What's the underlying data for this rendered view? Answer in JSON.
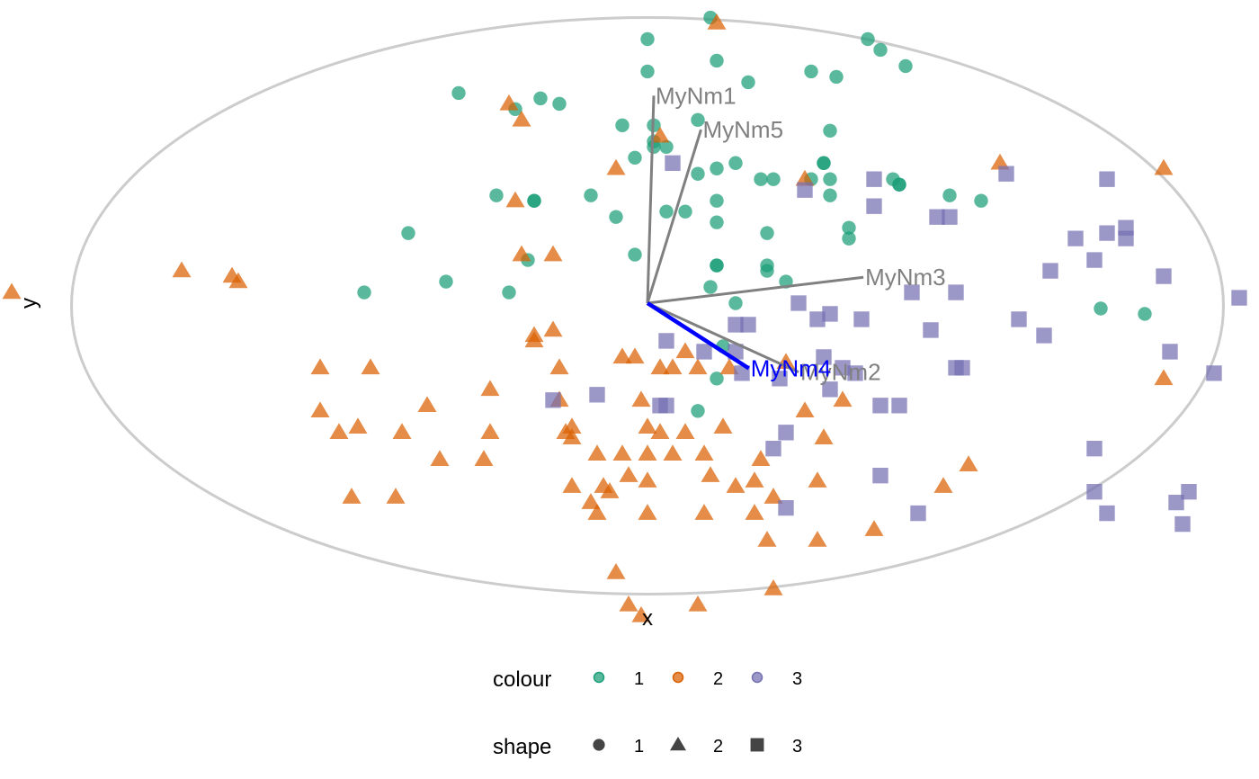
{
  "chart_data": {
    "type": "scatter",
    "title": "",
    "xlabel": "x",
    "ylabel": "y",
    "grid": false,
    "xlim": [
      -1.03,
      1.03
    ],
    "ylim": [
      -0.565,
      0.545
    ],
    "colors": {
      "1": "#1b9e77",
      "2": "#d95f02",
      "3": "#7570b3",
      "ellipse": "#cccccc",
      "arrow": "#808080",
      "highlight": "#0000ff"
    },
    "series": [
      {
        "name": "1",
        "shape": "circle",
        "points": [
          [
            0.1,
            0.53
          ],
          [
            0.0,
            0.49
          ],
          [
            0.35,
            0.49
          ],
          [
            0.37,
            0.47
          ],
          [
            0.41,
            0.44
          ],
          [
            0.0,
            0.43
          ],
          [
            0.16,
            0.41
          ],
          [
            0.3,
            0.42
          ],
          [
            -0.3,
            0.39
          ],
          [
            -0.17,
            0.38
          ],
          [
            -0.14,
            0.37
          ],
          [
            -0.21,
            0.36
          ],
          [
            0.08,
            0.34
          ],
          [
            -0.04,
            0.33
          ],
          [
            0.01,
            0.33
          ],
          [
            0.29,
            0.32
          ],
          [
            0.01,
            0.3
          ],
          [
            0.01,
            0.29
          ],
          [
            0.03,
            0.29
          ],
          [
            -0.02,
            0.27
          ],
          [
            0.14,
            0.26
          ],
          [
            0.11,
            0.25
          ],
          [
            0.08,
            0.24
          ],
          [
            0.28,
            0.26
          ],
          [
            0.28,
            0.26
          ],
          [
            0.18,
            0.23
          ],
          [
            0.2,
            0.23
          ],
          [
            0.29,
            0.23
          ],
          [
            0.26,
            0.23
          ],
          [
            0.39,
            0.23
          ],
          [
            0.4,
            0.22
          ],
          [
            -0.24,
            0.2
          ],
          [
            -0.18,
            0.19
          ],
          [
            -0.09,
            0.2
          ],
          [
            -0.18,
            0.19
          ],
          [
            0.4,
            0.22
          ],
          [
            0.29,
            0.2
          ],
          [
            0.48,
            0.2
          ],
          [
            0.53,
            0.19
          ],
          [
            0.03,
            0.17
          ],
          [
            -0.05,
            0.16
          ],
          [
            0.06,
            0.17
          ],
          [
            0.11,
            0.15
          ],
          [
            0.32,
            0.14
          ],
          [
            -0.38,
            0.13
          ],
          [
            0.19,
            0.13
          ],
          [
            0.32,
            0.12
          ],
          [
            -0.02,
            0.09
          ],
          [
            -0.19,
            0.08
          ],
          [
            0.11,
            0.07
          ],
          [
            0.11,
            0.07
          ],
          [
            0.19,
            0.07
          ],
          [
            0.19,
            0.06
          ],
          [
            -0.32,
            0.04
          ],
          [
            0.22,
            0.04
          ],
          [
            -0.45,
            0.02
          ],
          [
            -0.22,
            0.02
          ],
          [
            0.1,
            0.03
          ],
          [
            0.14,
            0.0
          ],
          [
            0.72,
            -0.01
          ],
          [
            0.12,
            -0.08
          ],
          [
            0.11,
            -0.14
          ],
          [
            0.08,
            -0.2
          ],
          [
            0.26,
            0.43
          ],
          [
            0.79,
            -0.02
          ],
          [
            0.11,
            0.19
          ],
          [
            0.11,
            0.45
          ]
        ]
      },
      {
        "name": "2",
        "shape": "triangle",
        "points": [
          [
            0.11,
            0.52
          ],
          [
            -0.22,
            0.37
          ],
          [
            -0.2,
            0.34
          ],
          [
            0.02,
            0.31
          ],
          [
            0.25,
            0.23
          ],
          [
            -0.05,
            0.25
          ],
          [
            0.56,
            0.26
          ],
          [
            0.82,
            0.25
          ],
          [
            -0.21,
            0.19
          ],
          [
            -0.66,
            0.05
          ],
          [
            -0.2,
            0.09
          ],
          [
            -0.65,
            0.04
          ],
          [
            -0.15,
            0.09
          ],
          [
            -0.74,
            0.06
          ],
          [
            -1.01,
            0.02
          ],
          [
            0.06,
            -0.09
          ],
          [
            -0.15,
            -0.05
          ],
          [
            -0.18,
            -0.07
          ],
          [
            -0.18,
            -0.06
          ],
          [
            -0.14,
            -0.12
          ],
          [
            -0.04,
            -0.1
          ],
          [
            -0.02,
            -0.1
          ],
          [
            0.02,
            -0.12
          ],
          [
            0.04,
            -0.12
          ],
          [
            0.13,
            -0.12
          ],
          [
            -0.52,
            -0.12
          ],
          [
            -0.44,
            -0.12
          ],
          [
            -0.25,
            -0.16
          ],
          [
            -0.14,
            -0.18
          ],
          [
            -0.01,
            -0.18
          ],
          [
            0.31,
            -0.18
          ],
          [
            -0.35,
            -0.19
          ],
          [
            -0.52,
            -0.2
          ],
          [
            -0.12,
            -0.23
          ],
          [
            0.0,
            -0.23
          ],
          [
            0.06,
            -0.24
          ],
          [
            0.25,
            -0.2
          ],
          [
            0.12,
            -0.23
          ],
          [
            -0.25,
            -0.24
          ],
          [
            -0.49,
            -0.24
          ],
          [
            -0.46,
            -0.23
          ],
          [
            -0.39,
            -0.24
          ],
          [
            -0.12,
            -0.25
          ],
          [
            0.02,
            -0.24
          ],
          [
            0.09,
            -0.28
          ],
          [
            -0.33,
            -0.29
          ],
          [
            -0.26,
            -0.29
          ],
          [
            -0.08,
            -0.28
          ],
          [
            -0.04,
            -0.28
          ],
          [
            0.0,
            -0.28
          ],
          [
            0.04,
            -0.28
          ],
          [
            0.18,
            -0.29
          ],
          [
            0.51,
            -0.3
          ],
          [
            0.1,
            -0.32
          ],
          [
            -0.12,
            -0.34
          ],
          [
            -0.07,
            -0.34
          ],
          [
            0.14,
            -0.34
          ],
          [
            0.17,
            -0.33
          ],
          [
            0.27,
            -0.33
          ],
          [
            -0.03,
            -0.32
          ],
          [
            -0.0,
            -0.33
          ],
          [
            -0.06,
            -0.35
          ],
          [
            0.47,
            -0.34
          ],
          [
            -0.09,
            -0.37
          ],
          [
            0.2,
            -0.36
          ],
          [
            -0.47,
            -0.36
          ],
          [
            -0.4,
            -0.36
          ],
          [
            0.17,
            -0.39
          ],
          [
            0.09,
            -0.39
          ],
          [
            0.0,
            -0.39
          ],
          [
            -0.08,
            -0.39
          ],
          [
            0.36,
            -0.42
          ],
          [
            0.27,
            -0.44
          ],
          [
            0.19,
            -0.44
          ],
          [
            -0.05,
            -0.5
          ],
          [
            -0.01,
            -0.58
          ],
          [
            0.08,
            -0.56
          ],
          [
            0.2,
            -0.53
          ],
          [
            -0.03,
            -0.56
          ],
          [
            0.08,
            -0.12
          ],
          [
            -0.13,
            -0.24
          ],
          [
            0.22,
            -0.11
          ],
          [
            0.28,
            -0.25
          ],
          [
            0.82,
            -0.14
          ]
        ]
      },
      {
        "name": "3",
        "shape": "square",
        "points": [
          [
            0.04,
            0.26
          ],
          [
            0.25,
            0.21
          ],
          [
            0.36,
            0.23
          ],
          [
            0.57,
            0.24
          ],
          [
            0.73,
            0.23
          ],
          [
            0.36,
            0.18
          ],
          [
            0.46,
            0.16
          ],
          [
            0.48,
            0.16
          ],
          [
            0.73,
            0.13
          ],
          [
            0.76,
            0.14
          ],
          [
            0.94,
            0.01
          ],
          [
            0.68,
            0.12
          ],
          [
            0.71,
            0.08
          ],
          [
            0.76,
            0.12
          ],
          [
            0.64,
            0.06
          ],
          [
            0.82,
            0.05
          ],
          [
            0.42,
            0.02
          ],
          [
            0.49,
            0.02
          ],
          [
            0.24,
            0.0
          ],
          [
            0.29,
            -0.02
          ],
          [
            0.27,
            -0.03
          ],
          [
            0.34,
            -0.03
          ],
          [
            0.59,
            -0.03
          ],
          [
            0.14,
            -0.04
          ],
          [
            0.16,
            -0.04
          ],
          [
            0.45,
            -0.05
          ],
          [
            0.63,
            -0.06
          ],
          [
            0.83,
            -0.09
          ],
          [
            0.03,
            -0.07
          ],
          [
            0.14,
            -0.09
          ],
          [
            0.09,
            -0.09
          ],
          [
            0.28,
            -0.1
          ],
          [
            0.31,
            -0.12
          ],
          [
            0.49,
            -0.12
          ],
          [
            0.5,
            -0.12
          ],
          [
            0.21,
            -0.14
          ],
          [
            0.15,
            -0.13
          ],
          [
            0.33,
            -0.13
          ],
          [
            0.29,
            -0.16
          ],
          [
            -0.08,
            -0.17
          ],
          [
            0.02,
            -0.19
          ],
          [
            0.03,
            -0.19
          ],
          [
            -0.15,
            -0.18
          ],
          [
            0.37,
            -0.19
          ],
          [
            0.4,
            -0.19
          ],
          [
            0.22,
            -0.24
          ],
          [
            0.2,
            -0.27
          ],
          [
            0.71,
            -0.27
          ],
          [
            0.37,
            -0.32
          ],
          [
            0.71,
            -0.35
          ],
          [
            0.86,
            -0.35
          ],
          [
            0.73,
            -0.39
          ],
          [
            0.84,
            -0.37
          ],
          [
            0.99,
            -0.07
          ],
          [
            0.9,
            -0.13
          ],
          [
            0.43,
            -0.39
          ],
          [
            0.85,
            -0.41
          ],
          [
            0.22,
            -0.38
          ]
        ]
      }
    ],
    "ellipse": {
      "center": [
        0.0,
        -0.005
      ],
      "rx": 0.915,
      "ry": 0.535
    },
    "loadings": [
      {
        "label": "MyNm1",
        "x": 0.01,
        "y": 0.385,
        "highlight": false
      },
      {
        "label": "MyNm5",
        "x": 0.085,
        "y": 0.322,
        "highlight": false
      },
      {
        "label": "MyNm3",
        "x": 0.343,
        "y": 0.048,
        "highlight": false
      },
      {
        "label": "MyNm2",
        "x": 0.24,
        "y": -0.128,
        "highlight": false
      },
      {
        "label": "MyNm4",
        "x": 0.161,
        "y": -0.121,
        "highlight": true
      }
    ],
    "legend": {
      "position": "bottom",
      "colour": {
        "title": "colour",
        "items": [
          "1",
          "2",
          "3"
        ]
      },
      "shape": {
        "title": "shape",
        "items": [
          "1",
          "2",
          "3"
        ]
      }
    }
  }
}
